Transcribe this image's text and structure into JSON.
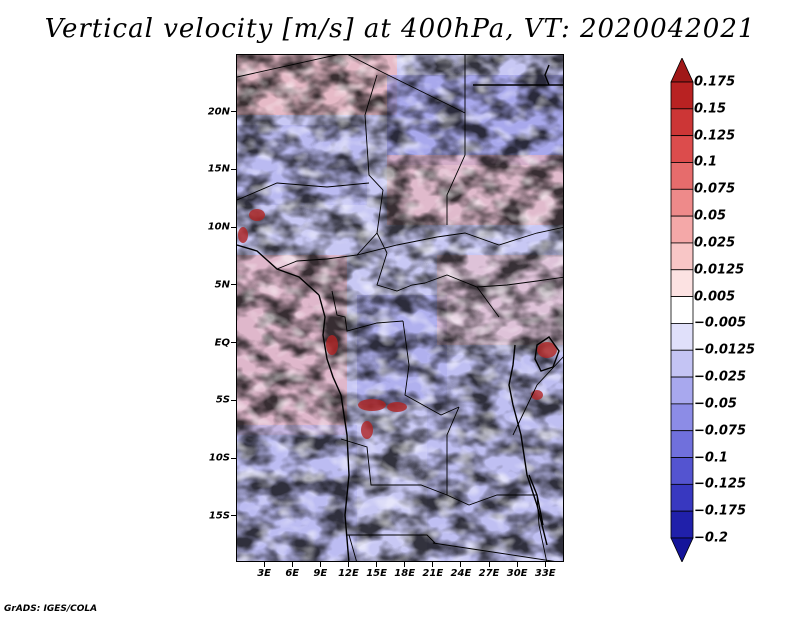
{
  "title": "Vertical velocity [m/s] at 400hPa, VT: 2020042021",
  "footer": "GrADS: IGES/COLA",
  "map": {
    "lat_range": [
      -19,
      25
    ],
    "lon_range": [
      0,
      35
    ],
    "lat_ticks": [
      {
        "value": 20,
        "label": "20N"
      },
      {
        "value": 15,
        "label": "15N"
      },
      {
        "value": 10,
        "label": "10N"
      },
      {
        "value": 5,
        "label": "5N"
      },
      {
        "value": 0,
        "label": "EQ"
      },
      {
        "value": -5,
        "label": "5S"
      },
      {
        "value": -10,
        "label": "10S"
      },
      {
        "value": -15,
        "label": "15S"
      }
    ],
    "lon_ticks": [
      {
        "value": 3,
        "label": "3E"
      },
      {
        "value": 6,
        "label": "6E"
      },
      {
        "value": 9,
        "label": "9E"
      },
      {
        "value": 12,
        "label": "12E"
      },
      {
        "value": 15,
        "label": "15E"
      },
      {
        "value": 18,
        "label": "18E"
      },
      {
        "value": 21,
        "label": "21E"
      },
      {
        "value": 24,
        "label": "24E"
      },
      {
        "value": 27,
        "label": "27E"
      },
      {
        "value": 30,
        "label": "30E"
      },
      {
        "value": 33,
        "label": "33E"
      }
    ]
  },
  "colorbar": {
    "levels": [
      "0.175",
      "0.15",
      "0.125",
      "0.1",
      "0.075",
      "0.05",
      "0.025",
      "0.0125",
      "0.005",
      "−0.005",
      "−0.0125",
      "−0.025",
      "−0.05",
      "−0.075",
      "−0.1",
      "−0.125",
      "−0.175",
      "−0.2"
    ],
    "colors": [
      "#a01818",
      "#b82222",
      "#cc3636",
      "#dc4c4c",
      "#e66c6c",
      "#ee8a8a",
      "#f4a8a8",
      "#f8c6c6",
      "#fce2e2",
      "#ffffff",
      "#e0e0fa",
      "#c4c4f4",
      "#a8a8ee",
      "#8c8ce6",
      "#7070dc",
      "#5454d0",
      "#3838c0",
      "#2020aa",
      "#14149a"
    ]
  }
}
